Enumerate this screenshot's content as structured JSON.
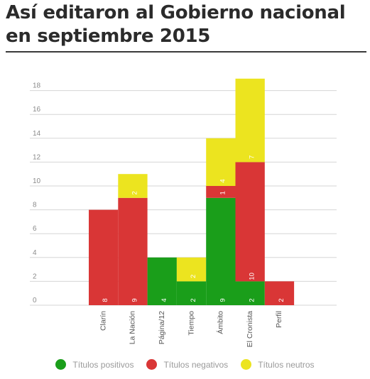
{
  "title": "Así editaron al Gobierno nacional en septiembre 2015",
  "chart_data": {
    "type": "bar",
    "stacked": true,
    "categories": [
      "Clarín",
      "La Nación",
      "Página/12",
      "Tiempo",
      "Ámbito",
      "El Cronista",
      "Perfil"
    ],
    "series": [
      {
        "name": "Títulos positivos",
        "color": "#1a9e1a",
        "values": [
          0,
          0,
          4,
          2,
          9,
          2,
          0
        ]
      },
      {
        "name": "Títulos negativos",
        "color": "#d93636",
        "values": [
          8,
          9,
          0,
          0,
          1,
          10,
          2
        ]
      },
      {
        "name": "Títulos neutros",
        "color": "#ece41f",
        "values": [
          0,
          2,
          0,
          2,
          4,
          7,
          0
        ]
      }
    ],
    "y_ticks": [
      0,
      2,
      4,
      6,
      8,
      10,
      12,
      14,
      16,
      18
    ],
    "ylim": [
      0,
      19
    ],
    "grid": true,
    "legend_position": "bottom"
  }
}
